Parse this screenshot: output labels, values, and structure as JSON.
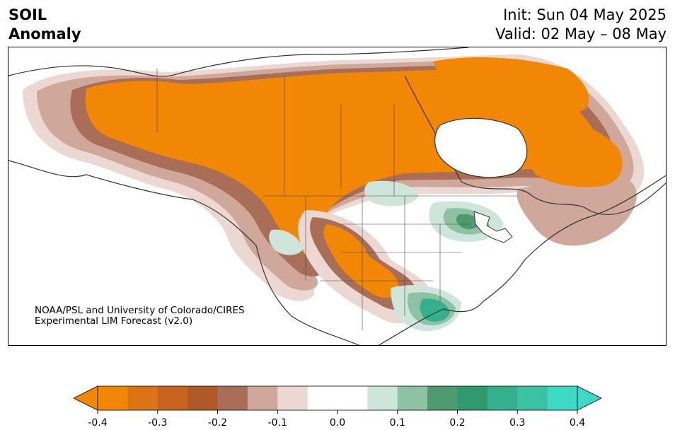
{
  "header": {
    "title_line1": "SOIL",
    "title_line2": "Anomaly",
    "init": "Init: Sun 04 May 2025",
    "valid": "Valid: 02 May – 08 May"
  },
  "credit": {
    "line1": "NOAA/PSL and University of Colorado/CIRES",
    "line2": "Experimental LIM Forecast (v2.0)"
  },
  "colorbar": {
    "colors": [
      "#f28705",
      "#dc7415",
      "#c76420",
      "#b05828",
      "#a86e58",
      "#d0a89a",
      "#ecd8d2",
      "#ffffff",
      "#ffffff",
      "#cde5da",
      "#8ec2a5",
      "#4c9a6d",
      "#2e9a6e",
      "#35b08c",
      "#3ac2a2",
      "#3dd9c5"
    ],
    "ticks": [
      "-0.4",
      "-0.3",
      "-0.2",
      "-0.1",
      "0.0",
      "0.1",
      "0.2",
      "0.3",
      "0.4"
    ]
  },
  "map": {
    "colors": {
      "deep_dry": "#f28705",
      "dry": "#c76420",
      "mod_dry": "#a86e58",
      "light_dry": "#d0a89a",
      "faint_dry": "#ecd8d2",
      "faint_wet": "#cde5da",
      "light_wet": "#8ec2a5",
      "wet": "#4c9a6d",
      "strong_wet": "#35b08c",
      "land_line": "#333333"
    }
  }
}
